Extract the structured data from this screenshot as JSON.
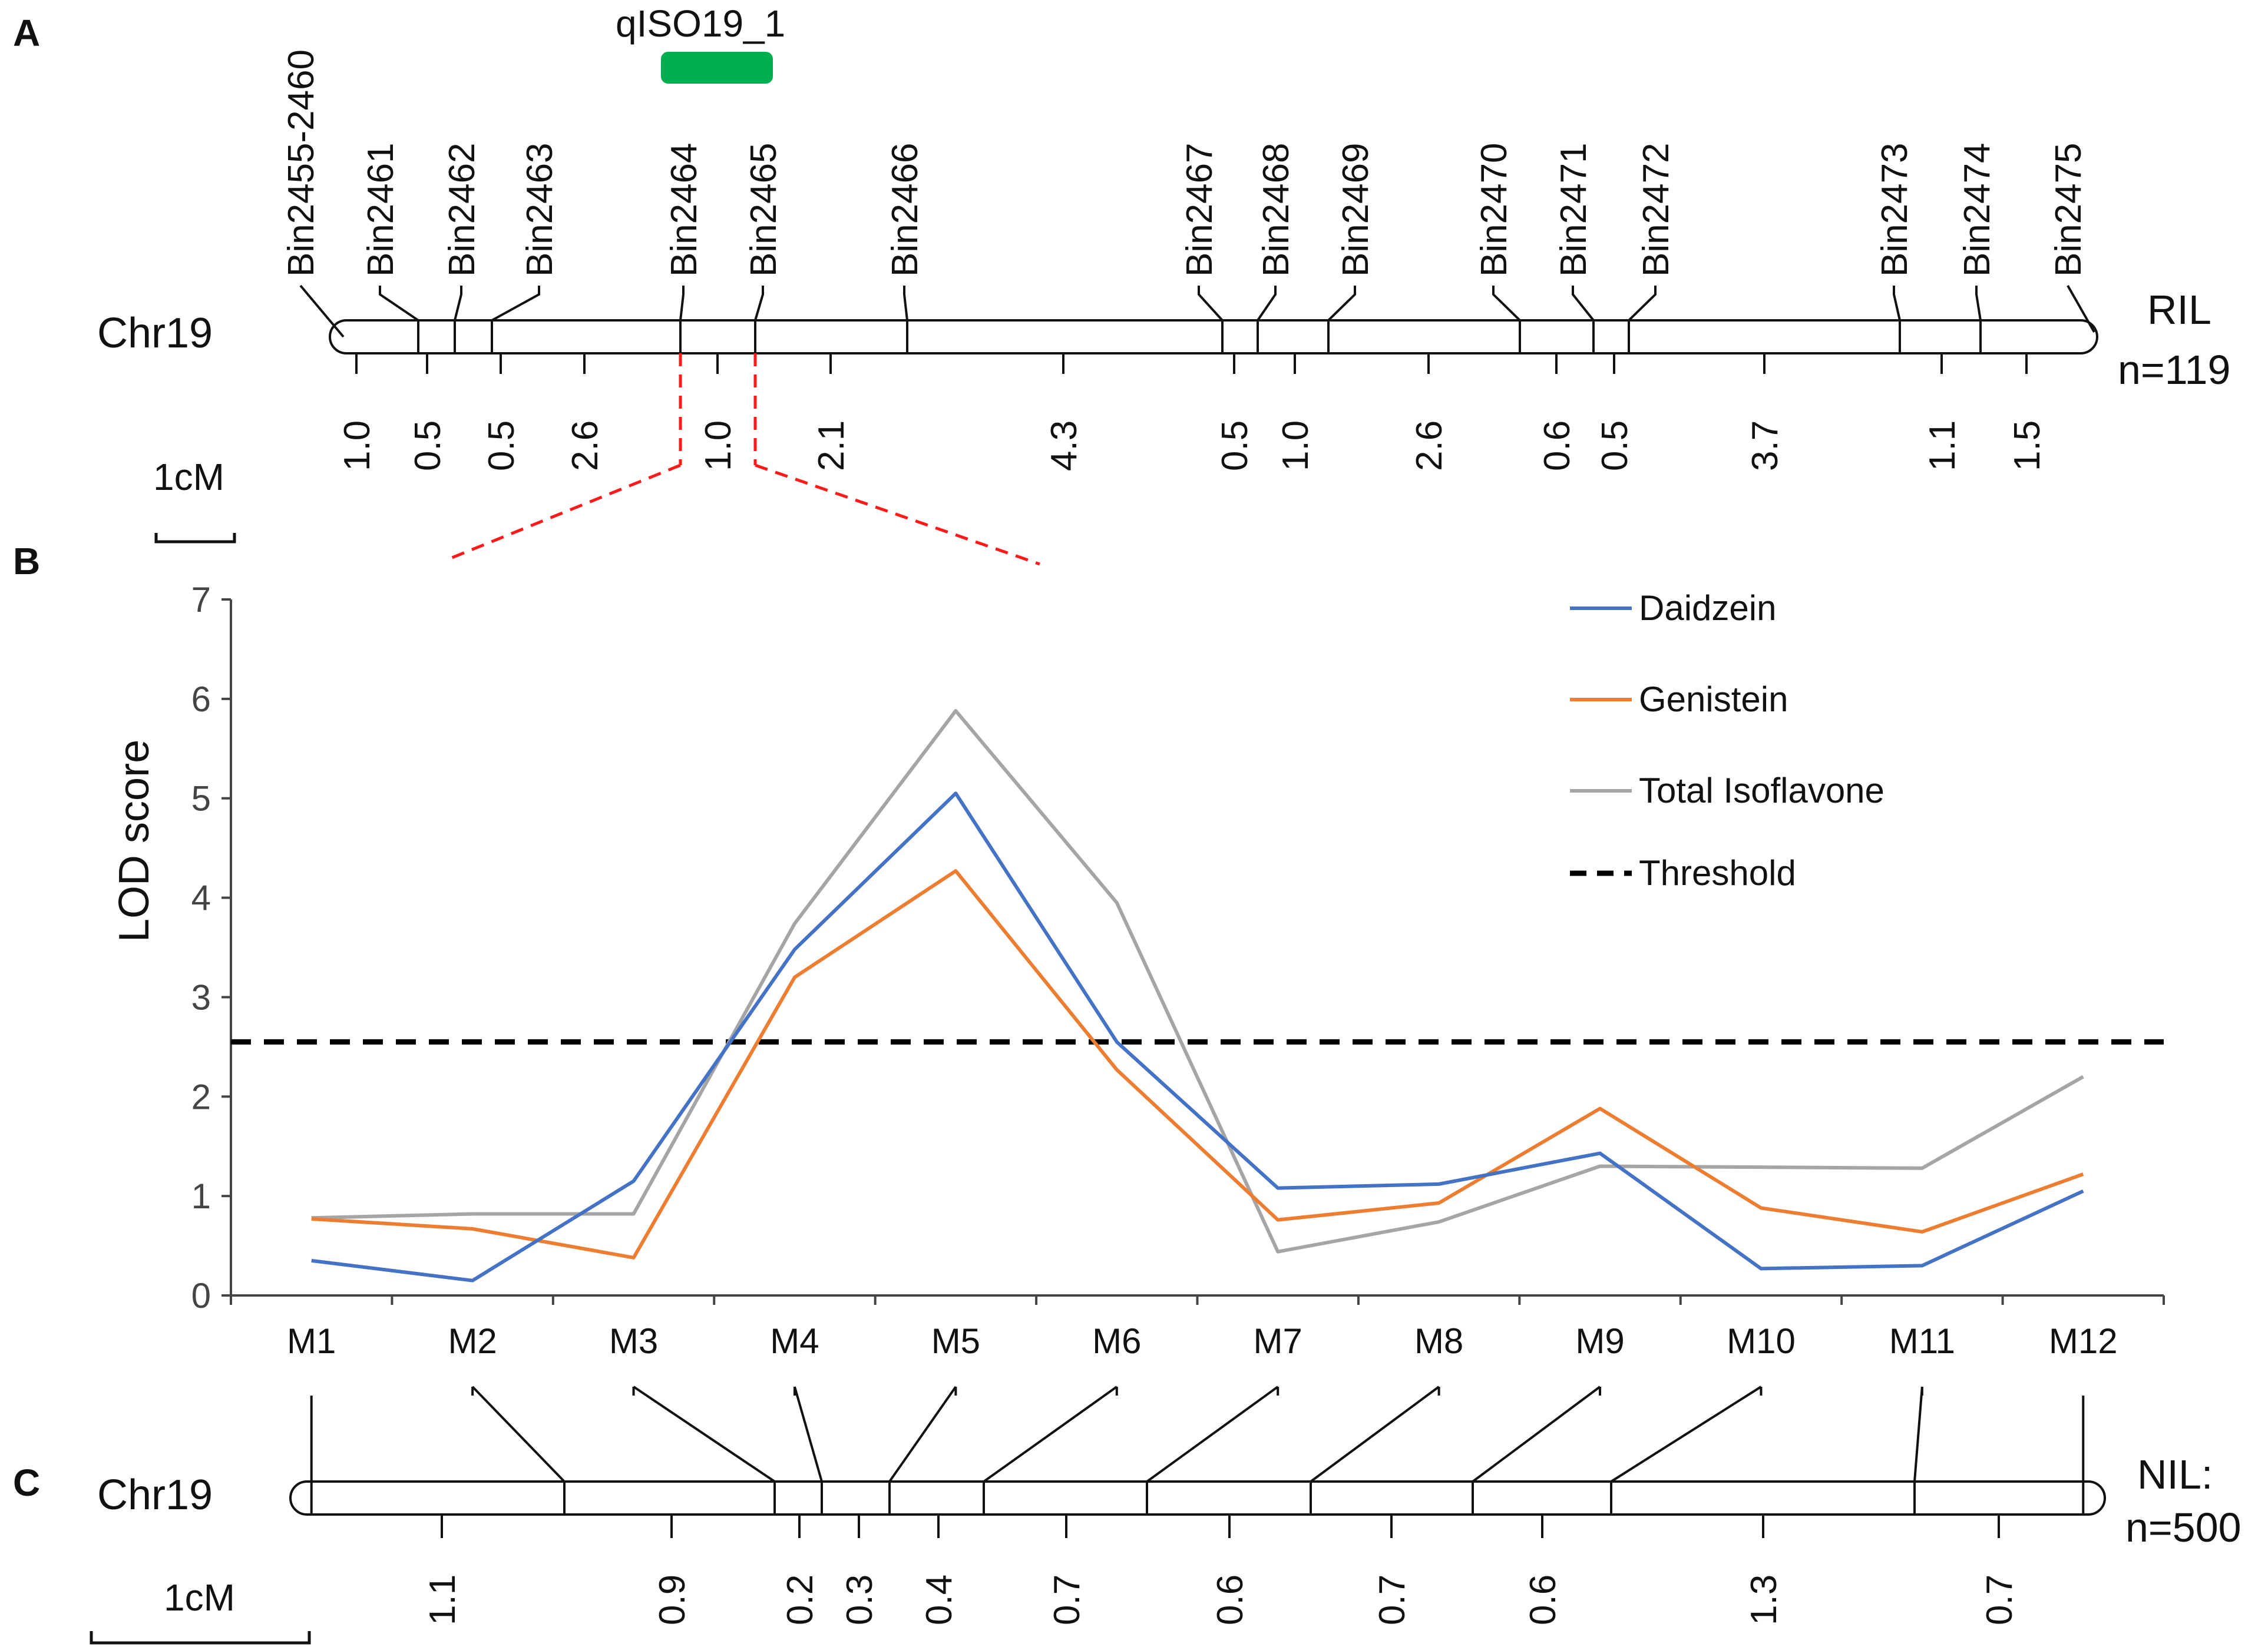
{
  "panels": {
    "a": "A",
    "b": "B",
    "c": "C"
  },
  "panel_a": {
    "chromosome": "Chr19",
    "population": "RIL",
    "population_size": "n=119",
    "scale_label": "1cM",
    "qtl_label": "qISO19_1",
    "bins": [
      "Bin2455-2460",
      "Bin2461",
      "Bin2462",
      "Bin2463",
      "Bin2464",
      "Bin2465",
      "Bin2466",
      "Bin2467",
      "Bin2468",
      "Bin2469",
      "Bin2470",
      "Bin2471",
      "Bin2472",
      "Bin2473",
      "Bin2474",
      "Bin2475"
    ],
    "distances": [
      "1.0",
      "0.5",
      "0.5",
      "2.6",
      "1.0",
      "2.1",
      "4.3",
      "0.5",
      "1.0",
      "2.6",
      "0.6",
      "0.5",
      "3.7",
      "1.1",
      "1.5"
    ]
  },
  "panel_c": {
    "chromosome": "Chr19",
    "population": "NIL:",
    "population_size": "n=500",
    "scale_label": "1cM",
    "distances": [
      "1.1",
      "0.9",
      "0.2",
      "0.3",
      "0.4",
      "0.7",
      "0.6",
      "0.7",
      "0.6",
      "1.3",
      "0.7"
    ]
  },
  "chart_data": {
    "type": "line",
    "ylabel": "LOD score",
    "xlabel": "",
    "categories": [
      "M1",
      "M2",
      "M3",
      "M4",
      "M5",
      "M6",
      "M7",
      "M8",
      "M9",
      "M10",
      "M11",
      "M12"
    ],
    "ylim": [
      0,
      7
    ],
    "yticks": [
      "0",
      "1",
      "2",
      "3",
      "4",
      "5",
      "6",
      "7"
    ],
    "series": [
      {
        "name": "Daidzein",
        "color": "#4472C4",
        "values": [
          0.35,
          0.15,
          1.15,
          3.48,
          5.05,
          2.55,
          1.08,
          1.12,
          1.43,
          0.27,
          0.3,
          1.05
        ]
      },
      {
        "name": "Genistein",
        "color": "#ED7D31",
        "values": [
          0.77,
          0.67,
          0.38,
          3.2,
          4.27,
          2.27,
          0.76,
          0.93,
          1.88,
          0.88,
          0.64,
          1.22
        ]
      },
      {
        "name": "Total Isoflavone",
        "color": "#A5A5A5",
        "values": [
          0.78,
          0.82,
          0.82,
          3.74,
          5.88,
          3.95,
          0.44,
          0.74,
          1.3,
          1.29,
          1.28,
          2.2
        ]
      }
    ],
    "threshold": {
      "name": "Threshold",
      "value": 2.55,
      "color": "#000000"
    },
    "legend": "top-right"
  }
}
